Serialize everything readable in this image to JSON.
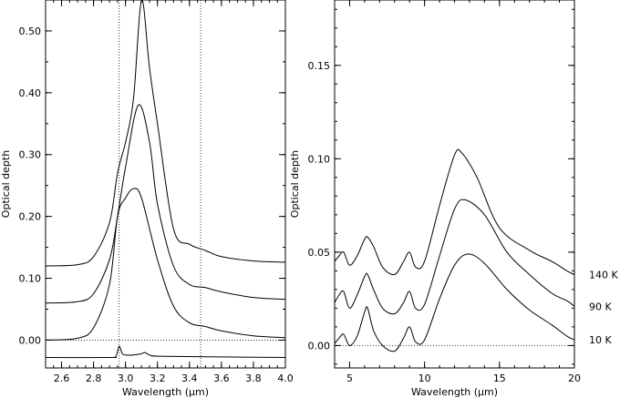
{
  "chart_data": [
    {
      "type": "line",
      "xlabel": "Wavelength (μm)",
      "ylabel": "Optical depth",
      "xlim": [
        2.5,
        4.0
      ],
      "ylim": [
        -0.045,
        0.55
      ],
      "x_ticks": [
        2.6,
        2.8,
        3.0,
        3.2,
        3.4,
        3.6,
        3.8,
        4.0
      ],
      "x_tick_labels": [
        "2.6",
        "2.8",
        "3.0",
        "3.2",
        "3.4",
        "3.6",
        "3.8",
        "4.0"
      ],
      "y_ticks": [
        0.0,
        0.1,
        0.2,
        0.3,
        0.4,
        0.5
      ],
      "y_tick_labels": [
        "0.00",
        "0.10",
        "0.20",
        "0.30",
        "0.40",
        "0.50"
      ],
      "zero_line": 0.0,
      "vertical_lines": [
        2.96,
        3.47
      ],
      "series": [
        {
          "x": [
            2.5,
            2.7,
            2.8,
            2.9,
            2.95,
            3.0,
            3.05,
            3.1,
            3.15,
            3.2,
            3.3,
            3.4,
            3.5,
            3.6,
            3.8,
            4.0
          ],
          "y": [
            0.12,
            0.122,
            0.135,
            0.19,
            0.27,
            0.32,
            0.39,
            0.55,
            0.44,
            0.35,
            0.18,
            0.155,
            0.145,
            0.135,
            0.128,
            0.126
          ]
        },
        {
          "x": [
            2.5,
            2.7,
            2.8,
            2.9,
            2.95,
            3.0,
            3.08,
            3.15,
            3.2,
            3.3,
            3.4,
            3.5,
            3.6,
            3.8,
            4.0
          ],
          "y": [
            0.06,
            0.062,
            0.075,
            0.13,
            0.2,
            0.28,
            0.38,
            0.32,
            0.22,
            0.12,
            0.09,
            0.085,
            0.078,
            0.069,
            0.066
          ]
        },
        {
          "x": [
            2.5,
            2.7,
            2.8,
            2.9,
            2.95,
            3.0,
            3.05,
            3.1,
            3.2,
            3.3,
            3.4,
            3.5,
            3.6,
            3.8,
            4.0
          ],
          "y": [
            0.0,
            0.003,
            0.02,
            0.09,
            0.2,
            0.23,
            0.245,
            0.23,
            0.13,
            0.055,
            0.028,
            0.022,
            0.015,
            0.007,
            0.004
          ]
        },
        {
          "x": [
            2.5,
            2.9,
            2.94,
            2.96,
            2.98,
            3.0,
            3.05,
            3.1,
            3.12,
            3.15,
            3.2,
            3.5,
            4.0
          ],
          "y": [
            -0.028,
            -0.028,
            -0.026,
            -0.01,
            -0.022,
            -0.024,
            -0.024,
            -0.022,
            -0.02,
            -0.024,
            -0.026,
            -0.027,
            -0.028
          ]
        }
      ]
    },
    {
      "type": "line",
      "xlabel": "Wavelength (μm)",
      "ylabel": "Optical depth",
      "xlim": [
        4,
        20
      ],
      "ylim": [
        -0.012,
        0.185
      ],
      "x_ticks": [
        5,
        10,
        15,
        20
      ],
      "x_tick_labels": [
        "5",
        "10",
        "15",
        "20"
      ],
      "y_ticks": [
        0.0,
        0.05,
        0.1,
        0.15
      ],
      "y_tick_labels": [
        "0.00",
        "0.05",
        "0.10",
        "0.15"
      ],
      "zero_line": 0.0,
      "series": [
        {
          "name": "140 K",
          "x": [
            4.0,
            4.3,
            4.6,
            5.0,
            5.5,
            6.0,
            6.2,
            6.6,
            7.2,
            8.0,
            8.6,
            9.0,
            9.4,
            10.0,
            11.0,
            12.0,
            12.5,
            13.5,
            15.0,
            17.0,
            18.5,
            19.5,
            20.0
          ],
          "y": [
            0.045,
            0.048,
            0.05,
            0.043,
            0.048,
            0.057,
            0.058,
            0.053,
            0.042,
            0.038,
            0.045,
            0.05,
            0.042,
            0.045,
            0.075,
            0.102,
            0.103,
            0.09,
            0.063,
            0.051,
            0.045,
            0.04,
            0.038
          ]
        },
        {
          "name": "90 K",
          "x": [
            4.0,
            4.3,
            4.6,
            5.0,
            5.5,
            6.0,
            6.2,
            6.6,
            7.2,
            8.0,
            8.6,
            9.0,
            9.4,
            10.0,
            11.0,
            12.0,
            12.7,
            14.0,
            15.5,
            17.0,
            18.5,
            19.5,
            20.0
          ],
          "y": [
            0.023,
            0.027,
            0.029,
            0.02,
            0.027,
            0.037,
            0.038,
            0.03,
            0.02,
            0.017,
            0.023,
            0.029,
            0.02,
            0.022,
            0.048,
            0.073,
            0.078,
            0.07,
            0.05,
            0.038,
            0.028,
            0.024,
            0.021
          ]
        },
        {
          "name": "10 K",
          "x": [
            4.0,
            4.3,
            4.6,
            5.0,
            5.5,
            6.0,
            6.2,
            6.6,
            7.2,
            8.0,
            8.6,
            9.0,
            9.4,
            10.0,
            11.0,
            12.0,
            12.9,
            14.0,
            15.5,
            17.0,
            18.5,
            19.5,
            20.0
          ],
          "y": [
            0.001,
            0.004,
            0.006,
            0.0,
            0.005,
            0.018,
            0.02,
            0.008,
            0.0,
            -0.003,
            0.004,
            0.01,
            0.002,
            0.003,
            0.025,
            0.043,
            0.049,
            0.044,
            0.03,
            0.019,
            0.011,
            0.005,
            0.003
          ]
        }
      ]
    }
  ]
}
